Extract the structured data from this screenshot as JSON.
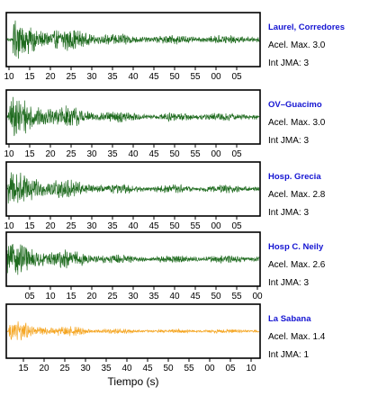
{
  "chart_data": [
    {
      "type": "line",
      "station": "Laurel, Corredores",
      "acel_label": "Acel. Max. 3.0",
      "int_label": "Int JMA: 3",
      "color": "#1f6b1f",
      "amplitude": 3.0,
      "tick_labels": [
        "10",
        "15",
        "20",
        "25",
        "30",
        "35",
        "40",
        "45",
        "50",
        "55",
        "00",
        "05"
      ],
      "onset_s": 3
    },
    {
      "type": "line",
      "station": "OV–Guacimo",
      "acel_label": "Acel. Max. 3.0",
      "int_label": "Int JMA: 3",
      "color": "#1f6b1f",
      "amplitude": 3.0,
      "tick_labels": [
        "10",
        "15",
        "20",
        "25",
        "30",
        "35",
        "40",
        "45",
        "50",
        "55",
        "00",
        "05"
      ],
      "onset_s": 1
    },
    {
      "type": "line",
      "station": "Hosp. Grecia",
      "acel_label": "Acel. Max. 2.8",
      "int_label": "Int JMA: 3",
      "color": "#1f6b1f",
      "amplitude": 2.8,
      "tick_labels": [
        "10",
        "15",
        "20",
        "25",
        "30",
        "35",
        "40",
        "45",
        "50",
        "55",
        "00",
        "05"
      ],
      "onset_s": 0
    },
    {
      "type": "line",
      "station": "Hosp C. Neily",
      "acel_label": "Acel. Max. 2.6",
      "int_label": "Int JMA: 3",
      "color": "#1f6b1f",
      "amplitude": 2.6,
      "tick_labels": [
        "05",
        "10",
        "15",
        "20",
        "25",
        "30",
        "35",
        "40",
        "45",
        "50",
        "55",
        "00"
      ],
      "onset_s": 0
    },
    {
      "type": "line",
      "station": "La Sabana",
      "acel_label": "Acel. Max. 1.4",
      "int_label": "Int JMA: 1",
      "color": "#f5a623",
      "amplitude": 1.4,
      "tick_labels": [
        "15",
        "20",
        "25",
        "30",
        "35",
        "40",
        "45",
        "50",
        "55",
        "00",
        "05",
        "10"
      ],
      "onset_s": 1
    }
  ],
  "xlabel": "Tiempo (s)",
  "colors": {
    "station_title": "#1414d2",
    "frame": "#000000"
  }
}
